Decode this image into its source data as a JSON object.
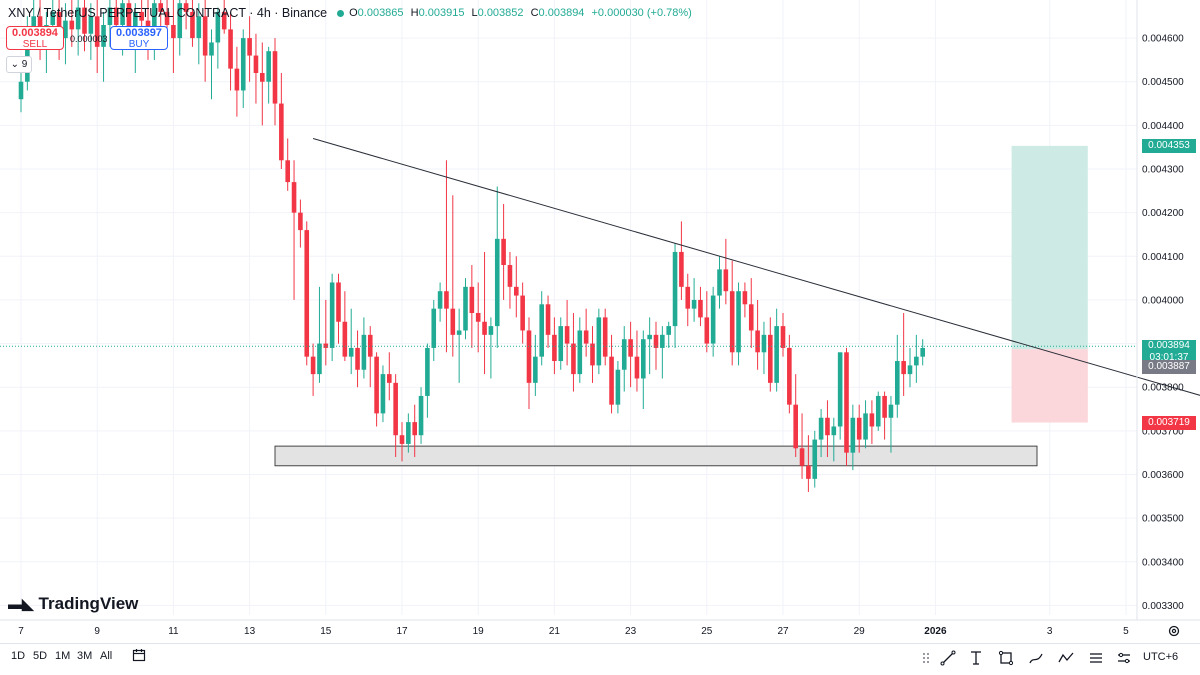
{
  "header": {
    "title": "XNY / TetherUS PERPETUAL CONTRACT · 4h · Binance",
    "open_label": "O",
    "open": "0.003865",
    "high_label": "H",
    "high": "0.003915",
    "low_label": "L",
    "low": "0.003852",
    "close_label": "C",
    "close": "0.003894",
    "change": "+0.000030 (+0.78%)"
  },
  "trade": {
    "sell_price": "0.003894",
    "sell_label": "SELL",
    "spread": "0.000003",
    "buy_price": "0.003897",
    "buy_label": "BUY"
  },
  "indicators_count": "9",
  "logo_text": "TradingView",
  "timeframes": [
    "1D",
    "5D",
    "1M",
    "3M",
    "All"
  ],
  "timezone": "UTC+6",
  "price_tags": {
    "target": "0.004353",
    "current": "0.003894",
    "countdown": "03:01:37",
    "entry": "0.003887",
    "stop": "0.003719"
  },
  "colors": {
    "up": "#22ab94",
    "down": "#f23645",
    "target_zone": "#cdebe4",
    "stop_zone": "#fbd6da"
  },
  "chart_data": {
    "type": "candlestick",
    "symbol": "XNY / TetherUS PERPETUAL CONTRACT",
    "interval": "4h",
    "exchange": "Binance",
    "ylim": [
      0.0033,
      0.00465
    ],
    "y_ticks": [
      "0.004600",
      "0.004500",
      "0.004400",
      "0.004300",
      "0.004200",
      "0.004100",
      "0.004000",
      "0.003900",
      "0.003800",
      "0.003700",
      "0.003600",
      "0.003500",
      "0.003400",
      "0.003300"
    ],
    "y_tick_values": [
      0.0046,
      0.0045,
      0.0044,
      0.0043,
      0.0042,
      0.0041,
      0.004,
      0.0039,
      0.0038,
      0.0037,
      0.0036,
      0.0035,
      0.0034,
      0.0033
    ],
    "x_ticks": [
      "7",
      "9",
      "11",
      "13",
      "15",
      "17",
      "19",
      "21",
      "23",
      "25",
      "27",
      "29",
      "2026",
      "3",
      "5"
    ],
    "x_tick_index": [
      0,
      12,
      24,
      36,
      48,
      60,
      72,
      84,
      96,
      108,
      120,
      132,
      144,
      162,
      174
    ],
    "bars_per_day": 6,
    "candles": [
      [
        0.00446,
        0.00452,
        0.00443,
        0.0045
      ],
      [
        0.0045,
        0.00465,
        0.00448,
        0.00462
      ],
      [
        0.00462,
        0.0047,
        0.00458,
        0.00465
      ],
      [
        0.00465,
        0.0047,
        0.00455,
        0.00458
      ],
      [
        0.00458,
        0.00466,
        0.00452,
        0.00463
      ],
      [
        0.00463,
        0.0047,
        0.00458,
        0.00466
      ],
      [
        0.00466,
        0.0047,
        0.00455,
        0.0046
      ],
      [
        0.0046,
        0.00468,
        0.00454,
        0.00464
      ],
      [
        0.00464,
        0.0047,
        0.00458,
        0.00462
      ],
      [
        0.00462,
        0.0047,
        0.00456,
        0.00467
      ],
      [
        0.00467,
        0.0047,
        0.00457,
        0.00461
      ],
      [
        0.00461,
        0.00468,
        0.00455,
        0.00465
      ],
      [
        0.00465,
        0.0047,
        0.00452,
        0.00458
      ],
      [
        0.00458,
        0.00466,
        0.0045,
        0.00463
      ],
      [
        0.00463,
        0.0047,
        0.00458,
        0.00467
      ],
      [
        0.00467,
        0.0047,
        0.0046,
        0.00463
      ],
      [
        0.00463,
        0.0047,
        0.00456,
        0.00468
      ],
      [
        0.00468,
        0.0047,
        0.00459,
        0.00462
      ],
      [
        0.00462,
        0.00468,
        0.00452,
        0.00466
      ],
      [
        0.00466,
        0.0047,
        0.0046,
        0.00464
      ],
      [
        0.00464,
        0.0047,
        0.00455,
        0.00461
      ],
      [
        0.00461,
        0.00469,
        0.00455,
        0.00468
      ],
      [
        0.00468,
        0.0047,
        0.00461,
        0.00466
      ],
      [
        0.00466,
        0.0047,
        0.00458,
        0.00463
      ],
      [
        0.00463,
        0.0047,
        0.00452,
        0.0046
      ],
      [
        0.0046,
        0.0047,
        0.00456,
        0.00468
      ],
      [
        0.00468,
        0.0047,
        0.00462,
        0.00466
      ],
      [
        0.00466,
        0.0047,
        0.00458,
        0.0046
      ],
      [
        0.0046,
        0.00468,
        0.00454,
        0.00465
      ],
      [
        0.00465,
        0.0047,
        0.0045,
        0.00456
      ],
      [
        0.00456,
        0.00462,
        0.00446,
        0.00459
      ],
      [
        0.00459,
        0.00467,
        0.00453,
        0.00466
      ],
      [
        0.00466,
        0.0047,
        0.00461,
        0.00462
      ],
      [
        0.00462,
        0.00466,
        0.00448,
        0.00453
      ],
      [
        0.00453,
        0.00458,
        0.00442,
        0.00448
      ],
      [
        0.00448,
        0.00462,
        0.00444,
        0.0046
      ],
      [
        0.0046,
        0.00465,
        0.0045,
        0.00456
      ],
      [
        0.00456,
        0.00461,
        0.00445,
        0.00452
      ],
      [
        0.00452,
        0.00459,
        0.0044,
        0.0045
      ],
      [
        0.0045,
        0.00458,
        0.00445,
        0.00457
      ],
      [
        0.00457,
        0.0046,
        0.0044,
        0.00445
      ],
      [
        0.00445,
        0.00452,
        0.0043,
        0.00432
      ],
      [
        0.00432,
        0.00437,
        0.00425,
        0.00427
      ],
      [
        0.00427,
        0.00432,
        0.004,
        0.0042
      ],
      [
        0.0042,
        0.00423,
        0.00412,
        0.00416
      ],
      [
        0.00416,
        0.00418,
        0.00385,
        0.00387
      ],
      [
        0.00387,
        0.0039,
        0.00378,
        0.00383
      ],
      [
        0.00383,
        0.00403,
        0.00381,
        0.0039
      ],
      [
        0.0039,
        0.004,
        0.00385,
        0.00389
      ],
      [
        0.00389,
        0.00406,
        0.00386,
        0.00404
      ],
      [
        0.00404,
        0.00406,
        0.0039,
        0.00395
      ],
      [
        0.00395,
        0.00402,
        0.00386,
        0.00387
      ],
      [
        0.00387,
        0.00398,
        0.00383,
        0.00389
      ],
      [
        0.00389,
        0.00393,
        0.0038,
        0.00384
      ],
      [
        0.00384,
        0.00396,
        0.00382,
        0.00392
      ],
      [
        0.00392,
        0.00394,
        0.0038,
        0.00387
      ],
      [
        0.00387,
        0.00388,
        0.00371,
        0.00374
      ],
      [
        0.00374,
        0.00385,
        0.00372,
        0.00383
      ],
      [
        0.00383,
        0.00388,
        0.00377,
        0.00381
      ],
      [
        0.00381,
        0.00383,
        0.00364,
        0.00369
      ],
      [
        0.00369,
        0.00372,
        0.00363,
        0.00367
      ],
      [
        0.00367,
        0.00374,
        0.00365,
        0.00372
      ],
      [
        0.00372,
        0.00376,
        0.00364,
        0.00369
      ],
      [
        0.00369,
        0.0038,
        0.00367,
        0.00378
      ],
      [
        0.00378,
        0.0039,
        0.00373,
        0.00389
      ],
      [
        0.00389,
        0.004,
        0.00386,
        0.00398
      ],
      [
        0.00398,
        0.00404,
        0.00395,
        0.00402
      ],
      [
        0.00402,
        0.00432,
        0.00388,
        0.00398
      ],
      [
        0.00398,
        0.00424,
        0.00387,
        0.00392
      ],
      [
        0.00392,
        0.00398,
        0.00381,
        0.00393
      ],
      [
        0.00393,
        0.00405,
        0.00391,
        0.00403
      ],
      [
        0.00403,
        0.00408,
        0.00389,
        0.00397
      ],
      [
        0.00397,
        0.00404,
        0.00388,
        0.00395
      ],
      [
        0.00395,
        0.00411,
        0.00383,
        0.00392
      ],
      [
        0.00392,
        0.00396,
        0.00382,
        0.00394
      ],
      [
        0.00394,
        0.00426,
        0.00389,
        0.00414
      ],
      [
        0.00414,
        0.00422,
        0.004,
        0.00408
      ],
      [
        0.00408,
        0.00411,
        0.00398,
        0.00403
      ],
      [
        0.00403,
        0.0041,
        0.00396,
        0.00401
      ],
      [
        0.00401,
        0.00404,
        0.0039,
        0.00393
      ],
      [
        0.00393,
        0.00396,
        0.00375,
        0.00381
      ],
      [
        0.00381,
        0.00392,
        0.00378,
        0.00387
      ],
      [
        0.00387,
        0.00402,
        0.00385,
        0.00399
      ],
      [
        0.00399,
        0.00401,
        0.00389,
        0.00392
      ],
      [
        0.00392,
        0.00396,
        0.00383,
        0.00386
      ],
      [
        0.00386,
        0.00396,
        0.00384,
        0.00394
      ],
      [
        0.00394,
        0.004,
        0.00385,
        0.0039
      ],
      [
        0.0039,
        0.00397,
        0.00379,
        0.00383
      ],
      [
        0.00383,
        0.00396,
        0.00381,
        0.00393
      ],
      [
        0.00393,
        0.00398,
        0.00387,
        0.0039
      ],
      [
        0.0039,
        0.00394,
        0.00381,
        0.00385
      ],
      [
        0.00385,
        0.00398,
        0.00383,
        0.00396
      ],
      [
        0.00396,
        0.00398,
        0.00385,
        0.00387
      ],
      [
        0.00387,
        0.00392,
        0.00374,
        0.00376
      ],
      [
        0.00376,
        0.00386,
        0.00374,
        0.00384
      ],
      [
        0.00384,
        0.00394,
        0.00379,
        0.00391
      ],
      [
        0.00391,
        0.00395,
        0.0038,
        0.00387
      ],
      [
        0.00387,
        0.00393,
        0.00379,
        0.00382
      ],
      [
        0.00382,
        0.00393,
        0.00375,
        0.00391
      ],
      [
        0.00391,
        0.00396,
        0.00383,
        0.00392
      ],
      [
        0.00392,
        0.00395,
        0.00384,
        0.00389
      ],
      [
        0.00389,
        0.00394,
        0.00382,
        0.00392
      ],
      [
        0.00392,
        0.00395,
        0.00389,
        0.00394
      ],
      [
        0.00394,
        0.00413,
        0.00389,
        0.00411
      ],
      [
        0.00411,
        0.00418,
        0.004,
        0.00403
      ],
      [
        0.00403,
        0.00406,
        0.00394,
        0.00398
      ],
      [
        0.00398,
        0.00405,
        0.00395,
        0.004
      ],
      [
        0.004,
        0.00403,
        0.00394,
        0.00396
      ],
      [
        0.00396,
        0.00402,
        0.00388,
        0.0039
      ],
      [
        0.0039,
        0.00403,
        0.00387,
        0.00401
      ],
      [
        0.00401,
        0.0041,
        0.00398,
        0.00407
      ],
      [
        0.00407,
        0.00414,
        0.00399,
        0.00402
      ],
      [
        0.00402,
        0.00409,
        0.00385,
        0.00388
      ],
      [
        0.00388,
        0.00404,
        0.00385,
        0.00402
      ],
      [
        0.00402,
        0.00404,
        0.00396,
        0.00399
      ],
      [
        0.00399,
        0.00405,
        0.00389,
        0.00393
      ],
      [
        0.00393,
        0.004,
        0.00384,
        0.00388
      ],
      [
        0.00388,
        0.00395,
        0.00383,
        0.00392
      ],
      [
        0.00392,
        0.00396,
        0.00379,
        0.00381
      ],
      [
        0.00381,
        0.00398,
        0.00379,
        0.00394
      ],
      [
        0.00394,
        0.00397,
        0.00387,
        0.00389
      ],
      [
        0.00389,
        0.00392,
        0.00374,
        0.00376
      ],
      [
        0.00376,
        0.00383,
        0.00364,
        0.00366
      ],
      [
        0.00366,
        0.00374,
        0.00359,
        0.00362
      ],
      [
        0.00362,
        0.00369,
        0.00356,
        0.00359
      ],
      [
        0.00359,
        0.0037,
        0.00357,
        0.00368
      ],
      [
        0.00368,
        0.00375,
        0.00364,
        0.00373
      ],
      [
        0.00373,
        0.00377,
        0.00364,
        0.00369
      ],
      [
        0.00369,
        0.00373,
        0.00363,
        0.00371
      ],
      [
        0.00371,
        0.00388,
        0.00368,
        0.00388
      ],
      [
        0.00388,
        0.00389,
        0.00362,
        0.00365
      ],
      [
        0.00365,
        0.00376,
        0.00361,
        0.00373
      ],
      [
        0.00373,
        0.00376,
        0.00365,
        0.00368
      ],
      [
        0.00368,
        0.00377,
        0.00366,
        0.00374
      ],
      [
        0.00374,
        0.00377,
        0.00367,
        0.00371
      ],
      [
        0.00371,
        0.00379,
        0.0037,
        0.00378
      ],
      [
        0.00378,
        0.00379,
        0.00368,
        0.00373
      ],
      [
        0.00373,
        0.00378,
        0.00365,
        0.00376
      ],
      [
        0.00376,
        0.00392,
        0.00373,
        0.00386
      ],
      [
        0.00386,
        0.00397,
        0.00378,
        0.00383
      ],
      [
        0.00383,
        0.00389,
        0.0038,
        0.00385
      ],
      [
        0.00385,
        0.00392,
        0.00381,
        0.00387
      ],
      [
        0.00387,
        0.00391,
        0.00385,
        0.00389
      ]
    ],
    "trendline": {
      "start_index": 46,
      "start_price": 0.00437,
      "end_index": 186,
      "end_price": 0.00378
    },
    "support_zone": {
      "start_index": 40,
      "end_index": 160,
      "top": 0.003665,
      "bottom": 0.00362
    },
    "position": {
      "start_index": 156,
      "end_index": 168,
      "entry": 0.003887,
      "target": 0.004353,
      "stop": 0.003719
    },
    "current_price": 0.003894
  }
}
